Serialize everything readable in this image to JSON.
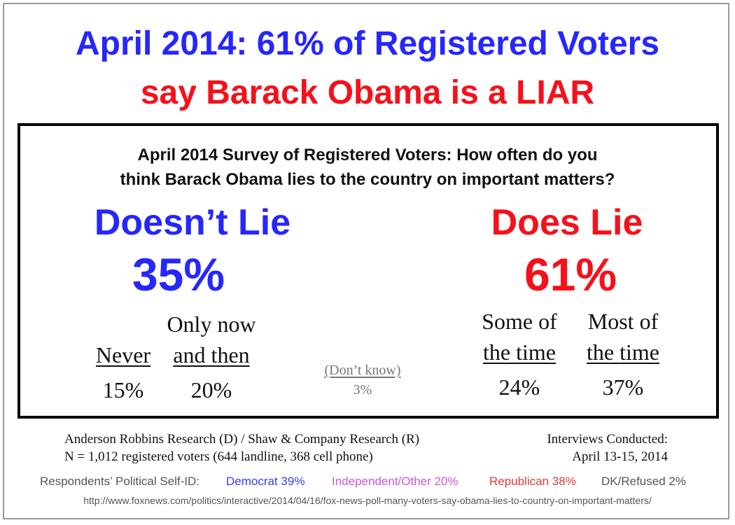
{
  "headline": {
    "line1": "April 2014: 61% of Registered Voters",
    "line2": "say Barack Obama is a LIAR"
  },
  "question": {
    "line1": "April 2014 Survey of Registered Voters:  How often do you",
    "line2": "think Barack Obama lies to the country on important matters?"
  },
  "summary": {
    "doesnt_lie": {
      "label": "Doesn’t Lie",
      "value": "35%"
    },
    "does_lie": {
      "label": "Does Lie",
      "value": "61%"
    }
  },
  "categories": {
    "never": {
      "label_top": "",
      "label": "Never",
      "value": "15%"
    },
    "only_now": {
      "label_top": "Only now",
      "label": "and then",
      "value": "20%"
    },
    "dont_know": {
      "label": "(Don’t know)",
      "value": "3%"
    },
    "some": {
      "label_top": "Some of",
      "label": "the time",
      "value": "24%"
    },
    "most": {
      "label_top": "Most of",
      "label": "the time",
      "value": "37%"
    }
  },
  "source": {
    "line1": "Anderson Robbins Research (D) / Shaw & Company Research (R)",
    "line2": "N = 1,012 registered voters (644 landline, 368 cell phone)",
    "dates_label": "Interviews Conducted:",
    "dates": "April 13-15, 2014"
  },
  "self_id": {
    "label": "Respondents’ Political Self-ID:",
    "democrat": "Democrat 39%",
    "independent": "Independent/Other 20%",
    "republican": "Republican 38%",
    "dk": "DK/Refused 2%"
  },
  "url": "http://www.foxnews.com/politics/interactive/2014/04/16/fox-news-poll-many-voters-say-obama-lies-to-country-on-important-matters/",
  "colors": {
    "blue": "#2626ff",
    "red": "#f5101a",
    "democrat": "#3a3aff",
    "independent": "#cc55dd",
    "republican": "#e63a3a",
    "gray": "#555555"
  }
}
